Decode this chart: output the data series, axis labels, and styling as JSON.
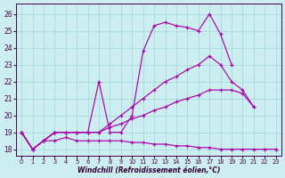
{
  "xlabel": "Windchill (Refroidissement éolien,°C)",
  "bg_color": "#cceef0",
  "grid_color": "#aadddd",
  "line_color": "#aa00aa",
  "xlim_min": -0.5,
  "xlim_max": 23.5,
  "ylim_min": 17.6,
  "ylim_max": 26.6,
  "xticks": [
    0,
    1,
    2,
    3,
    4,
    5,
    6,
    7,
    8,
    9,
    10,
    11,
    12,
    13,
    14,
    15,
    16,
    17,
    18,
    19,
    20,
    21,
    22,
    23
  ],
  "yticks": [
    18,
    19,
    20,
    21,
    22,
    23,
    24,
    25,
    26
  ],
  "lines": [
    {
      "x": [
        0,
        1,
        2,
        3,
        4,
        5,
        6,
        7,
        8,
        9,
        10,
        11,
        12,
        13,
        14,
        15,
        16,
        17,
        18,
        19,
        20,
        21,
        23
      ],
      "y": [
        19,
        18,
        18.5,
        19,
        19,
        19,
        19,
        22,
        19,
        19,
        20,
        23.8,
        25.3,
        25.5,
        25.3,
        25.2,
        25.0,
        26.0,
        24.8,
        23.0,
        null,
        null,
        18.0
      ]
    },
    {
      "x": [
        0,
        1,
        2,
        3,
        4,
        5,
        6,
        7,
        8,
        9,
        10,
        11,
        12,
        13,
        14,
        15,
        16,
        17,
        18,
        19,
        20,
        21
      ],
      "y": [
        19,
        18,
        18.5,
        19,
        19,
        19,
        19,
        19,
        19.5,
        20.0,
        20.5,
        21.0,
        21.5,
        22.0,
        22.3,
        22.7,
        23.0,
        23.5,
        23.0,
        22.0,
        21.5,
        20.5
      ]
    },
    {
      "x": [
        0,
        1,
        2,
        3,
        4,
        5,
        6,
        7,
        8,
        9,
        10,
        11,
        12,
        13,
        14,
        15,
        16,
        17,
        18,
        19,
        20,
        21
      ],
      "y": [
        19,
        18,
        18.5,
        19,
        19,
        19,
        19,
        19,
        19.3,
        19.5,
        19.8,
        20.0,
        20.3,
        20.5,
        20.8,
        21.0,
        21.2,
        21.5,
        21.5,
        21.5,
        21.3,
        20.5
      ]
    },
    {
      "x": [
        0,
        1,
        2,
        3,
        4,
        5,
        6,
        7,
        8,
        9,
        10,
        11,
        12,
        13,
        14,
        15,
        16,
        17,
        18,
        19,
        20,
        21,
        22,
        23
      ],
      "y": [
        19,
        18,
        18.5,
        18.5,
        18.7,
        18.5,
        18.5,
        18.5,
        18.5,
        18.5,
        18.4,
        18.4,
        18.3,
        18.3,
        18.2,
        18.2,
        18.1,
        18.1,
        18.0,
        18.0,
        18.0,
        18.0,
        18.0,
        18.0
      ]
    }
  ]
}
